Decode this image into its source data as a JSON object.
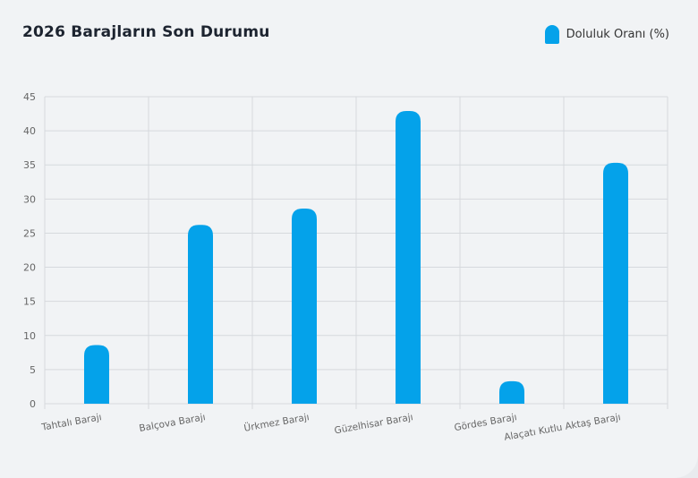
{
  "title": "2026 Barajların Son Durumu",
  "colors": {
    "bar": "#04a2ea",
    "grid": "#d6d9dd",
    "axis": "#666666"
  },
  "chart_data": {
    "type": "bar",
    "title": "2026 Barajların Son Durumu",
    "xlabel": "",
    "ylabel": "",
    "ylim": [
      0,
      45
    ],
    "yticks": [
      0,
      5,
      10,
      15,
      20,
      25,
      30,
      35,
      40,
      45
    ],
    "grid": true,
    "legend_position": "top-right",
    "categories": [
      "Tahtalı Barajı",
      "Balçova Barajı",
      "Ürkmez Barajı",
      "Güzelhisar Barajı",
      "Gördes Barajı",
      "Alaçatı Kutlu Aktaş Barajı"
    ],
    "series": [
      {
        "name": "Doluluk Oranı (%)",
        "values": [
          8.6,
          26.2,
          28.6,
          42.9,
          3.3,
          35.3
        ]
      }
    ]
  }
}
